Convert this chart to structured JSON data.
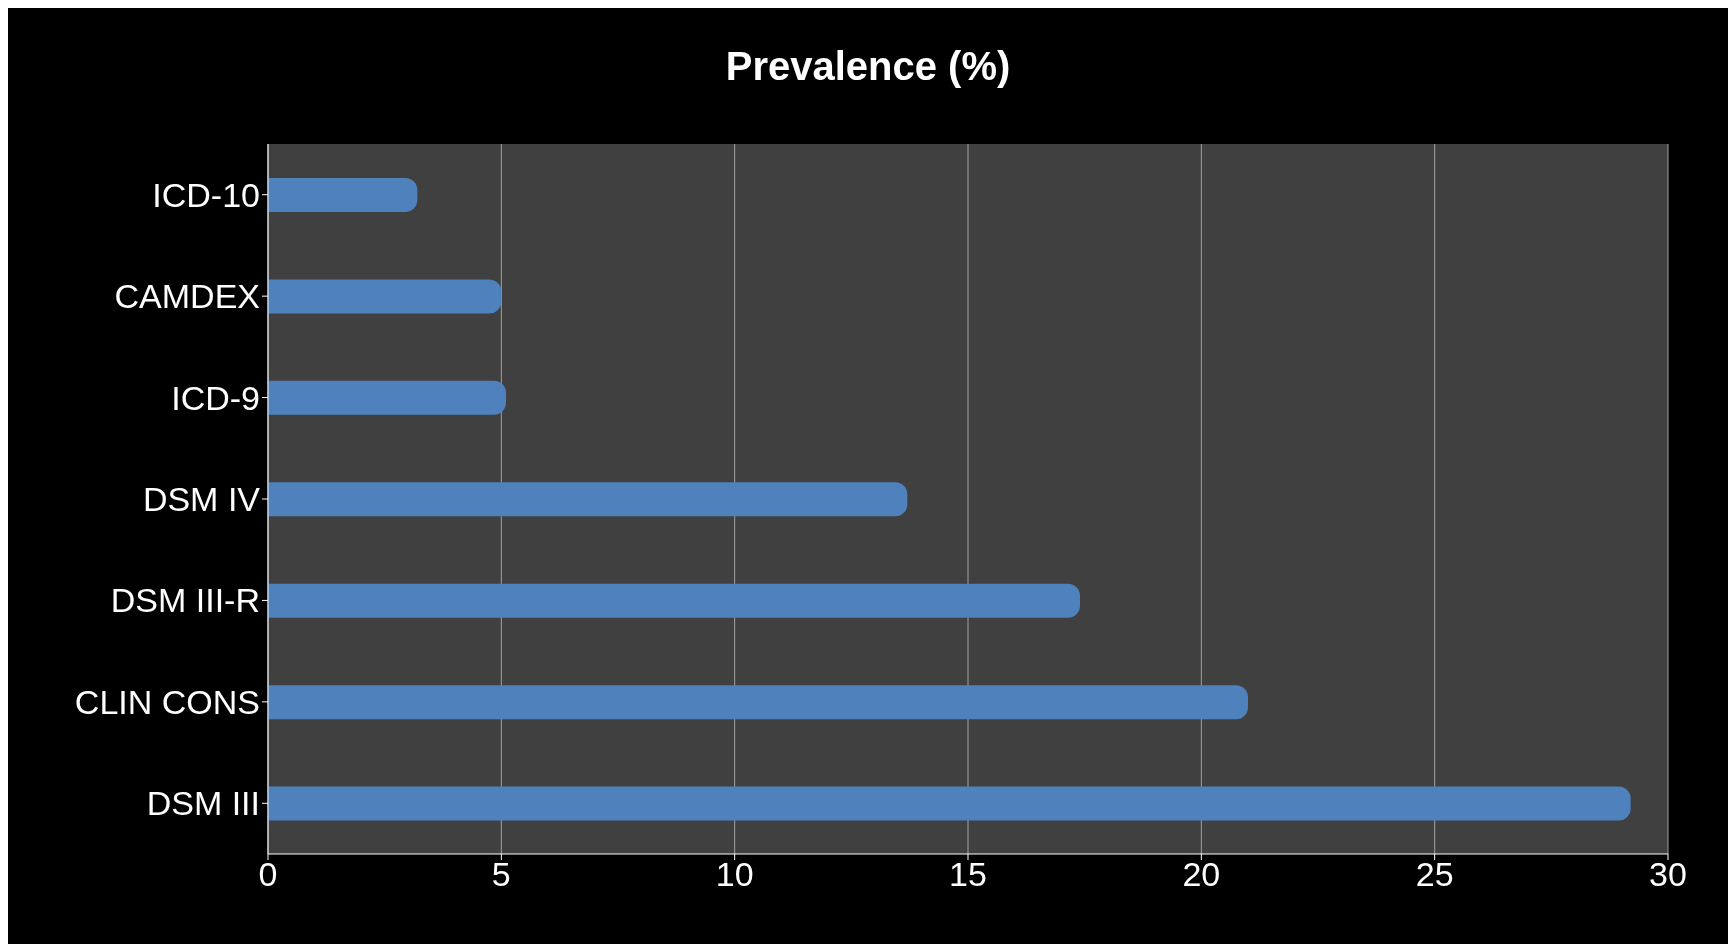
{
  "chart_data": {
    "type": "bar",
    "orientation": "horizontal",
    "title": "Prevalence (%)",
    "categories": [
      "ICD-10",
      "CAMDEX",
      "ICD-9",
      "DSM IV",
      "DSM III-R",
      "CLIN CONS",
      "DSM III"
    ],
    "values": [
      3.2,
      5.0,
      5.1,
      13.7,
      17.4,
      21.0,
      29.2
    ],
    "color": "#4f81bd",
    "xlim": [
      0,
      30
    ],
    "xticks": [
      0,
      5,
      10,
      15,
      20,
      25,
      30
    ],
    "grid": "x"
  }
}
